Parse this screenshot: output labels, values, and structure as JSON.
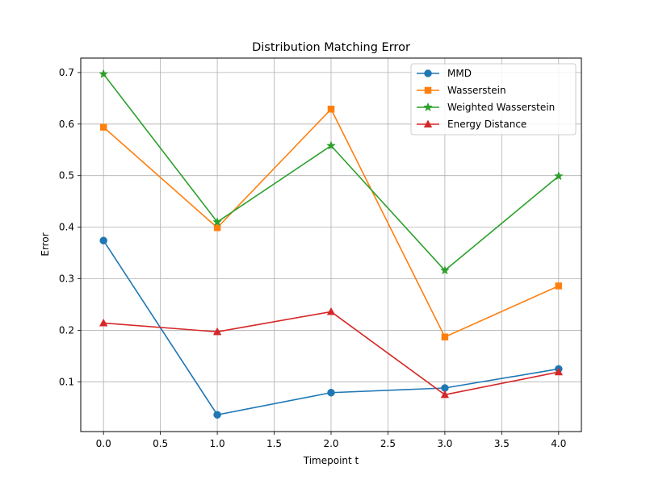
{
  "chart_data": {
    "type": "line",
    "title": "Distribution Matching Error",
    "xlabel": "Timepoint t",
    "ylabel": "Error",
    "x": [
      0,
      1,
      2,
      3,
      4
    ],
    "xlim": [
      -0.2,
      4.2
    ],
    "ylim": [
      0.0035,
      0.728
    ],
    "xticks": [
      0.0,
      0.5,
      1.0,
      1.5,
      2.0,
      2.5,
      3.0,
      3.5,
      4.0
    ],
    "xtick_labels": [
      "0.0",
      "0.5",
      "1.0",
      "1.5",
      "2.0",
      "2.5",
      "3.0",
      "3.5",
      "4.0"
    ],
    "yticks": [
      0.1,
      0.2,
      0.3,
      0.4,
      0.5,
      0.6,
      0.7
    ],
    "ytick_labels": [
      "0.1",
      "0.2",
      "0.3",
      "0.4",
      "0.5",
      "0.6",
      "0.7"
    ],
    "grid": true,
    "legend_position": "top-right",
    "series": [
      {
        "name": "MMD",
        "color": "#1f77b4",
        "marker": "circle",
        "values": [
          0.374,
          0.036,
          0.079,
          0.088,
          0.125
        ]
      },
      {
        "name": "Wasserstein",
        "color": "#ff7f0e",
        "marker": "square",
        "values": [
          0.594,
          0.399,
          0.629,
          0.187,
          0.286
        ]
      },
      {
        "name": "Weighted Wasserstein",
        "color": "#2ca02c",
        "marker": "star",
        "values": [
          0.697,
          0.41,
          0.558,
          0.316,
          0.499
        ]
      },
      {
        "name": "Energy Distance",
        "color": "#d62728",
        "marker": "triangle",
        "values": [
          0.214,
          0.197,
          0.236,
          0.075,
          0.119
        ]
      }
    ]
  }
}
